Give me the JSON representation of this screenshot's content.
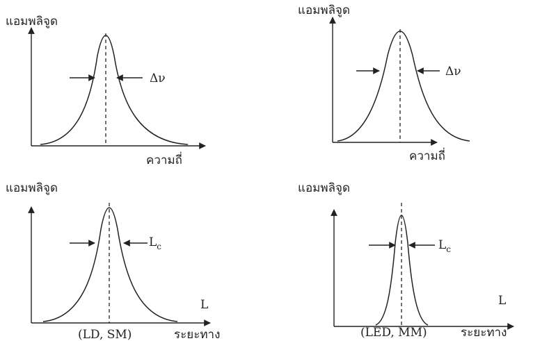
{
  "panels": [
    {
      "y_label": "แอมพลิจูด",
      "x_label": "ความถี่",
      "width_label": "Δν"
    },
    {
      "y_label": "แอมพลิจูด",
      "x_label": "ความถี่",
      "width_label": "Δν"
    },
    {
      "y_label": "แอมพลิจูด",
      "x_label": "ระยะทาง",
      "width_label": {
        "main": "L",
        "sub": "c"
      },
      "length_label": "L",
      "caption": "(LD, SM)"
    },
    {
      "y_label": "แอมพลิจูด",
      "x_label": "ระยะทาง",
      "width_label": {
        "main": "L",
        "sub": "c"
      },
      "length_label": "L",
      "caption": "(LED, MM)"
    }
  ]
}
